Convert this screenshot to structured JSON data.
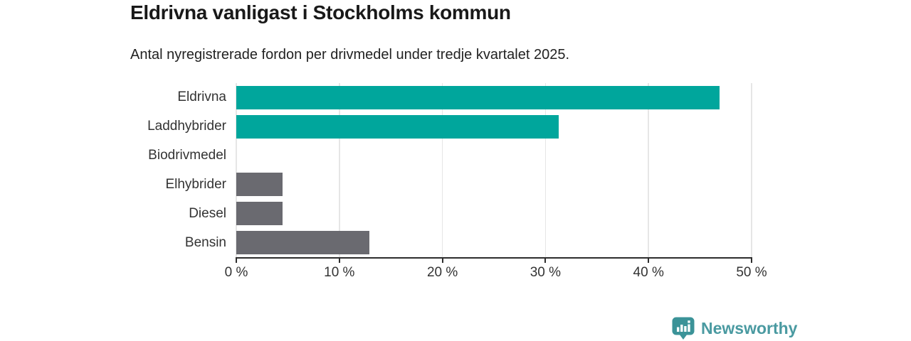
{
  "header": {
    "title": "Eldrivna vanligast i Stockholms kommun",
    "subtitle": "Antal nyregistrerade fordon per drivmedel under tredje kvartalet 2025."
  },
  "branding": {
    "name": "Newsworthy",
    "icon": "newsworthy-logo-icon",
    "text_color": "#4a9aa1",
    "icon_color": "#3b9398"
  },
  "colors": {
    "highlight_bar": "#00a69c",
    "default_bar": "#6a6a70",
    "axis": "#2d2d2d",
    "gridline": "#e6e6e6",
    "label_text": "#333333",
    "title_text": "#191919"
  },
  "chart_data": {
    "type": "bar",
    "orientation": "horizontal",
    "title": "Eldrivna vanligast i Stockholms kommun",
    "subtitle": "Antal nyregistrerade fordon per drivmedel under tredje kvartalet 2025.",
    "categories": [
      "Eldrivna",
      "Laddhybrider",
      "Biodrivmedel",
      "Elhybrider",
      "Diesel",
      "Bensin"
    ],
    "values": [
      46.9,
      31.3,
      0,
      4.5,
      4.5,
      12.9
    ],
    "unit": "%",
    "bar_colors": [
      "#00a69c",
      "#00a69c",
      "#6a6a70",
      "#6a6a70",
      "#6a6a70",
      "#6a6a70"
    ],
    "x_ticks": [
      "0 %",
      "10 %",
      "20 %",
      "30 %",
      "40 %",
      "50 %"
    ],
    "x_tick_values": [
      0,
      10,
      20,
      30,
      40,
      50
    ],
    "xlim": [
      0,
      50
    ],
    "grid": true,
    "legend": "none"
  }
}
